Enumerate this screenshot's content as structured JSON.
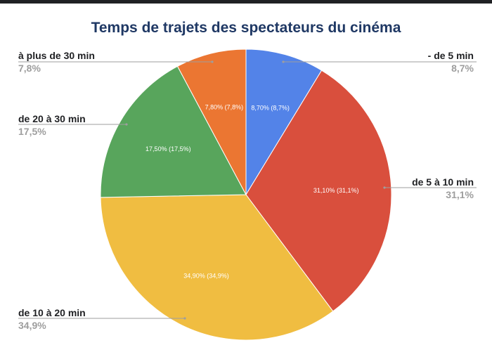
{
  "chart_data": {
    "type": "pie",
    "title": "Temps de trajets des spectateurs du cinéma",
    "slices": [
      {
        "label": "- de 5 min",
        "value": 8.7,
        "value_label": "8,7%",
        "inner_label": "8,70% (8,7%)",
        "color": "#5383e8"
      },
      {
        "label": "de 5 à 10 min",
        "value": 31.1,
        "value_label": "31,1%",
        "inner_label": "31,10% (31,1%)",
        "color": "#d94f3d"
      },
      {
        "label": "de 10 à 20 min",
        "value": 34.9,
        "value_label": "34,9%",
        "inner_label": "34,90% (34,9%)",
        "color": "#f0bd41"
      },
      {
        "label": "de 20 à 30 min",
        "value": 17.5,
        "value_label": "17,5%",
        "inner_label": "17,50% (17,5%)",
        "color": "#58a55c"
      },
      {
        "label": "à plus de 30 min",
        "value": 7.8,
        "value_label": "7,8%",
        "inner_label": "7,80% (7,8%)",
        "color": "#eb7632"
      }
    ],
    "legend_placement": "outside-callouts"
  }
}
